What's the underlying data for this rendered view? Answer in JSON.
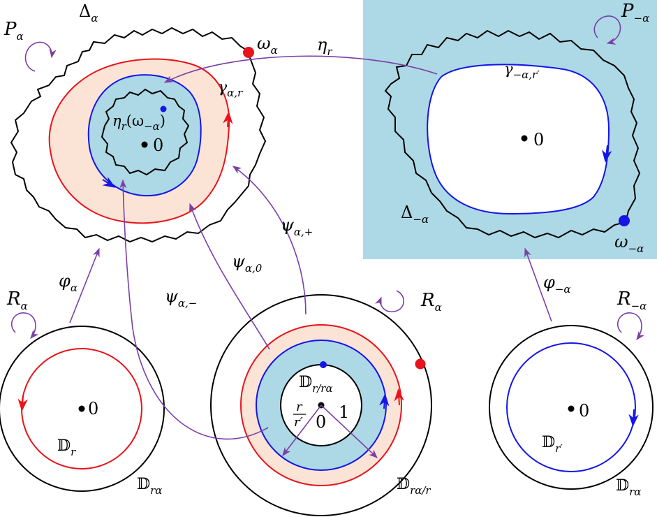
{
  "colors": {
    "black": "#000000",
    "red": "#e8141b",
    "blue": "#1515e6",
    "purple": "#7b3fa6",
    "light_blue": "#add8e6",
    "peach": "#fbe3d6"
  },
  "labels": {
    "P_alpha": {
      "base": "P",
      "sub": "α"
    },
    "Delta_alpha": {
      "base": "Δ",
      "sub": "α"
    },
    "omega_alpha": {
      "base": "ω",
      "sub": "α"
    },
    "eta_r": {
      "base": "η",
      "sub": "r"
    },
    "gamma_alpha_r": {
      "base": "γ",
      "sub": "α,r"
    },
    "eta_r_omega": {
      "base": "η",
      "sub": "r",
      "tail": "(ω",
      "sub2": "−α",
      "end": ")"
    },
    "zero_top_left": "0",
    "P_minus_alpha": {
      "base": "P",
      "sub": "−α"
    },
    "gamma_minus_alpha": {
      "base": "γ",
      "sub": "−α,r′"
    },
    "zero_top_right": "0",
    "Delta_minus_alpha": {
      "base": "Δ",
      "sub": "−α"
    },
    "omega_minus_alpha": {
      "base": "ω",
      "sub": "−α"
    },
    "psi_plus": {
      "base": "ψ",
      "sub": "α,+"
    },
    "psi_zero": {
      "base": "ψ",
      "sub": "α,0"
    },
    "psi_minus": {
      "base": "ψ",
      "sub": "α,−"
    },
    "phi_alpha": {
      "base": "φ",
      "sub": "α"
    },
    "phi_minus_alpha": {
      "base": "φ",
      "sub": "−α"
    },
    "R_alpha_left": {
      "base": "R",
      "sub": "α"
    },
    "R_alpha_mid": {
      "base": "R",
      "sub": "α"
    },
    "R_minus_alpha": {
      "base": "R",
      "sub": "−α"
    },
    "zero_bottom_left": "0",
    "D_r": {
      "base": "𝔻",
      "sub": "r"
    },
    "D_r_alpha_left": {
      "base": "𝔻",
      "sub": "rα"
    },
    "D_r_over_r_alpha": {
      "base": "𝔻",
      "sub": "r/rα"
    },
    "frac_num": "r",
    "frac_den": "r′",
    "zero_mid": "0",
    "one_mid": "1",
    "D_r_alpha_over_r": {
      "base": "𝔻",
      "sub": "rα/r"
    },
    "zero_bottom_right": "0",
    "D_r_prime": {
      "base": "𝔻",
      "sub": "r′"
    },
    "D_r_alpha_right": {
      "base": "𝔻",
      "sub": "rα"
    }
  }
}
